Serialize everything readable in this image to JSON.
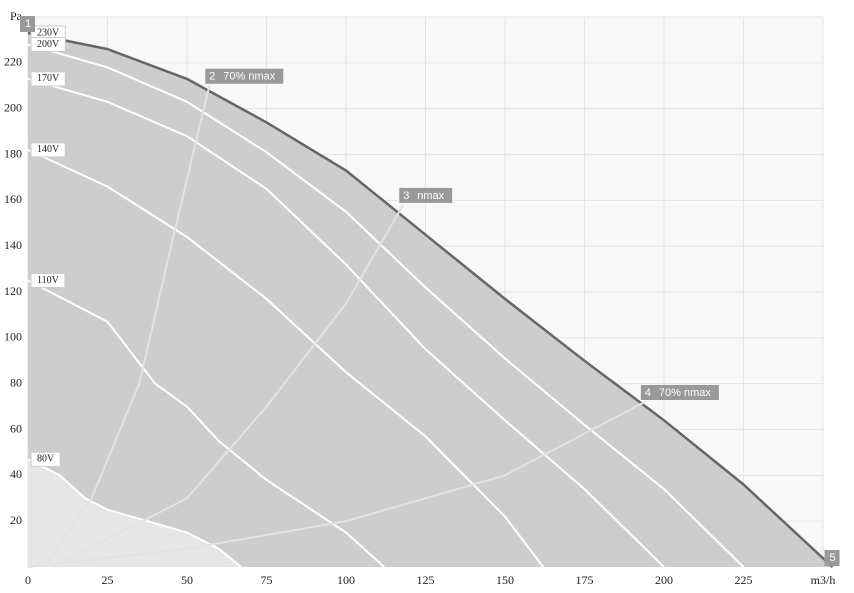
{
  "chart_data": {
    "type": "line",
    "xlim": [
      0,
      250
    ],
    "ylim": [
      0,
      240
    ],
    "xticks": [
      0,
      25,
      50,
      75,
      100,
      125,
      150,
      175,
      200,
      225,
      {
        "value": 250,
        "label": "m3/h"
      }
    ],
    "yticks": [
      20,
      40,
      60,
      80,
      100,
      120,
      140,
      160,
      180,
      200,
      220,
      {
        "value": 240,
        "label": "Pa"
      }
    ],
    "grid": true,
    "series": [
      {
        "name": "230V",
        "color": "#666666",
        "fill": "#cdcdcd",
        "x": [
          0,
          25,
          50,
          75,
          100,
          125,
          150,
          175,
          200,
          225,
          253
        ],
        "values": [
          233,
          226,
          213,
          194,
          173,
          145,
          117,
          90,
          64,
          36,
          0
        ]
      },
      {
        "name": "200V",
        "color": "#ffffff",
        "x": [
          0,
          25,
          50,
          75,
          100,
          125,
          150,
          175,
          200,
          225
        ],
        "values": [
          228,
          218,
          203,
          181,
          155,
          122,
          91,
          62,
          34,
          0
        ]
      },
      {
        "name": "170V",
        "color": "#ffffff",
        "x": [
          0,
          25,
          50,
          75,
          100,
          125,
          150,
          175,
          200
        ],
        "values": [
          213,
          203,
          188,
          165,
          132,
          95,
          64,
          34,
          0
        ]
      },
      {
        "name": "140V",
        "color": "#ffffff",
        "x": [
          0,
          25,
          50,
          75,
          100,
          125,
          150,
          162
        ],
        "values": [
          182,
          166,
          144,
          117,
          85,
          57,
          22,
          0
        ]
      },
      {
        "name": "110V",
        "color": "#ffffff",
        "x": [
          0,
          25,
          40,
          50,
          60,
          75,
          100,
          112
        ],
        "values": [
          125,
          107,
          80,
          70,
          55,
          38,
          15,
          0
        ]
      },
      {
        "name": "80V",
        "color": "#ffffff",
        "fill": "#e6e6e6",
        "x": [
          0,
          10,
          18,
          25,
          50,
          60,
          67
        ],
        "values": [
          47,
          40,
          30,
          25,
          15,
          8,
          0
        ]
      },
      {
        "name": "70% nmax",
        "marker": "2",
        "color": "#e2e2e2",
        "x": [
          5,
          20,
          35,
          45,
          57
        ],
        "values": [
          0,
          30,
          80,
          140,
          210
        ]
      },
      {
        "name": "nmax",
        "marker": "3",
        "color": "#e2e2e2",
        "x": [
          8,
          50,
          75,
          100,
          118
        ],
        "values": [
          0,
          30,
          70,
          115,
          158
        ]
      },
      {
        "name": "70% nmax",
        "marker": "4",
        "color": "#e2e2e2",
        "x": [
          0,
          50,
          100,
          150,
          194
        ],
        "values": [
          0,
          8,
          20,
          40,
          72
        ]
      }
    ],
    "markers": [
      {
        "label": "1",
        "x": 0,
        "y": 233
      },
      {
        "label": "5",
        "x": 253,
        "y": 0
      }
    ]
  }
}
